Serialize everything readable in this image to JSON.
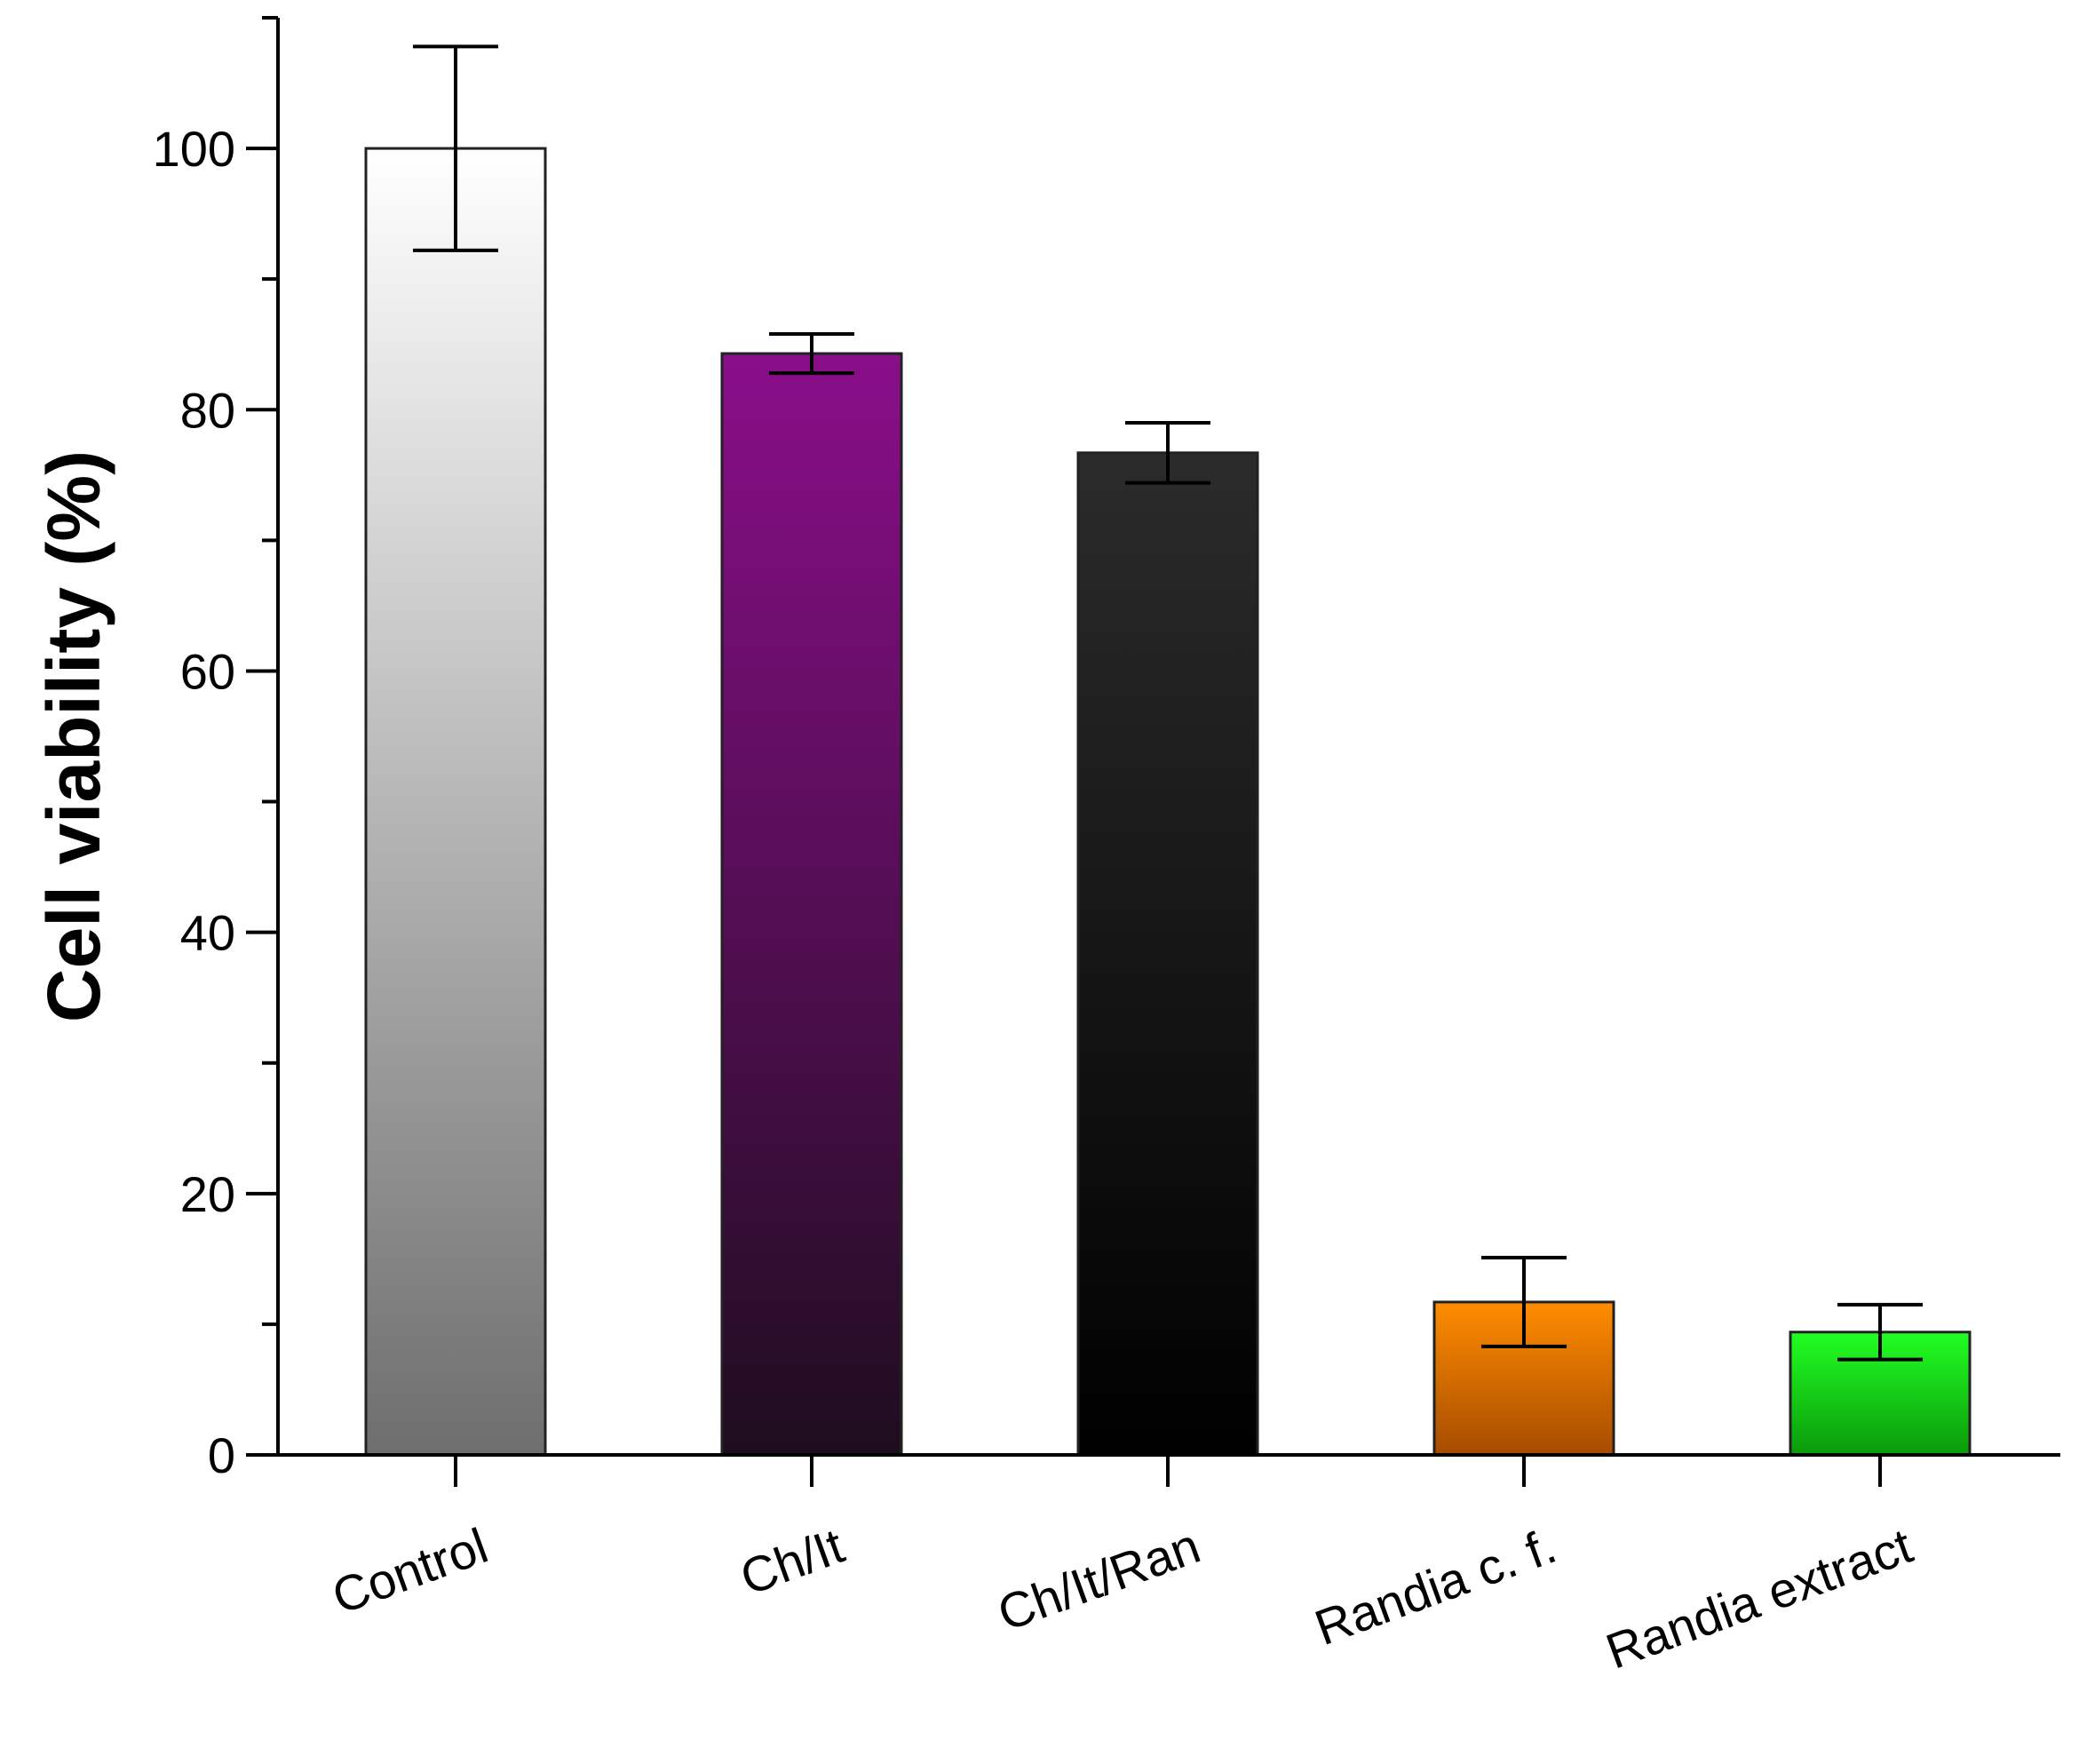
{
  "chart_data": {
    "type": "bar",
    "categories": [
      "Control",
      "Ch/It",
      "Ch/It/Ran",
      "Randia c. f.",
      "Randia extract"
    ],
    "values": [
      100,
      84.3,
      76.7,
      11.7,
      9.4
    ],
    "error": [
      7.8,
      1.5,
      2.3,
      3.4,
      2.1
    ],
    "ylabel": "Cell viability (%)",
    "xlabel": "",
    "ylim": [
      0,
      110
    ],
    "yticks": [
      0,
      20,
      40,
      60,
      80,
      100
    ],
    "ytick_labels": [
      "0",
      "20",
      "40",
      "60",
      "80",
      "100"
    ],
    "grid": false,
    "bar_colors": [
      {
        "top": "#ffffff",
        "bottom": "#6e6e6e"
      },
      {
        "top": "#8a0e8a",
        "bottom": "#1e0d1e"
      },
      {
        "top": "#2b2b2b",
        "bottom": "#000000"
      },
      {
        "top": "#ff8c00",
        "bottom": "#a64b00"
      },
      {
        "top": "#22ff22",
        "bottom": "#0a9a0a"
      }
    ]
  }
}
